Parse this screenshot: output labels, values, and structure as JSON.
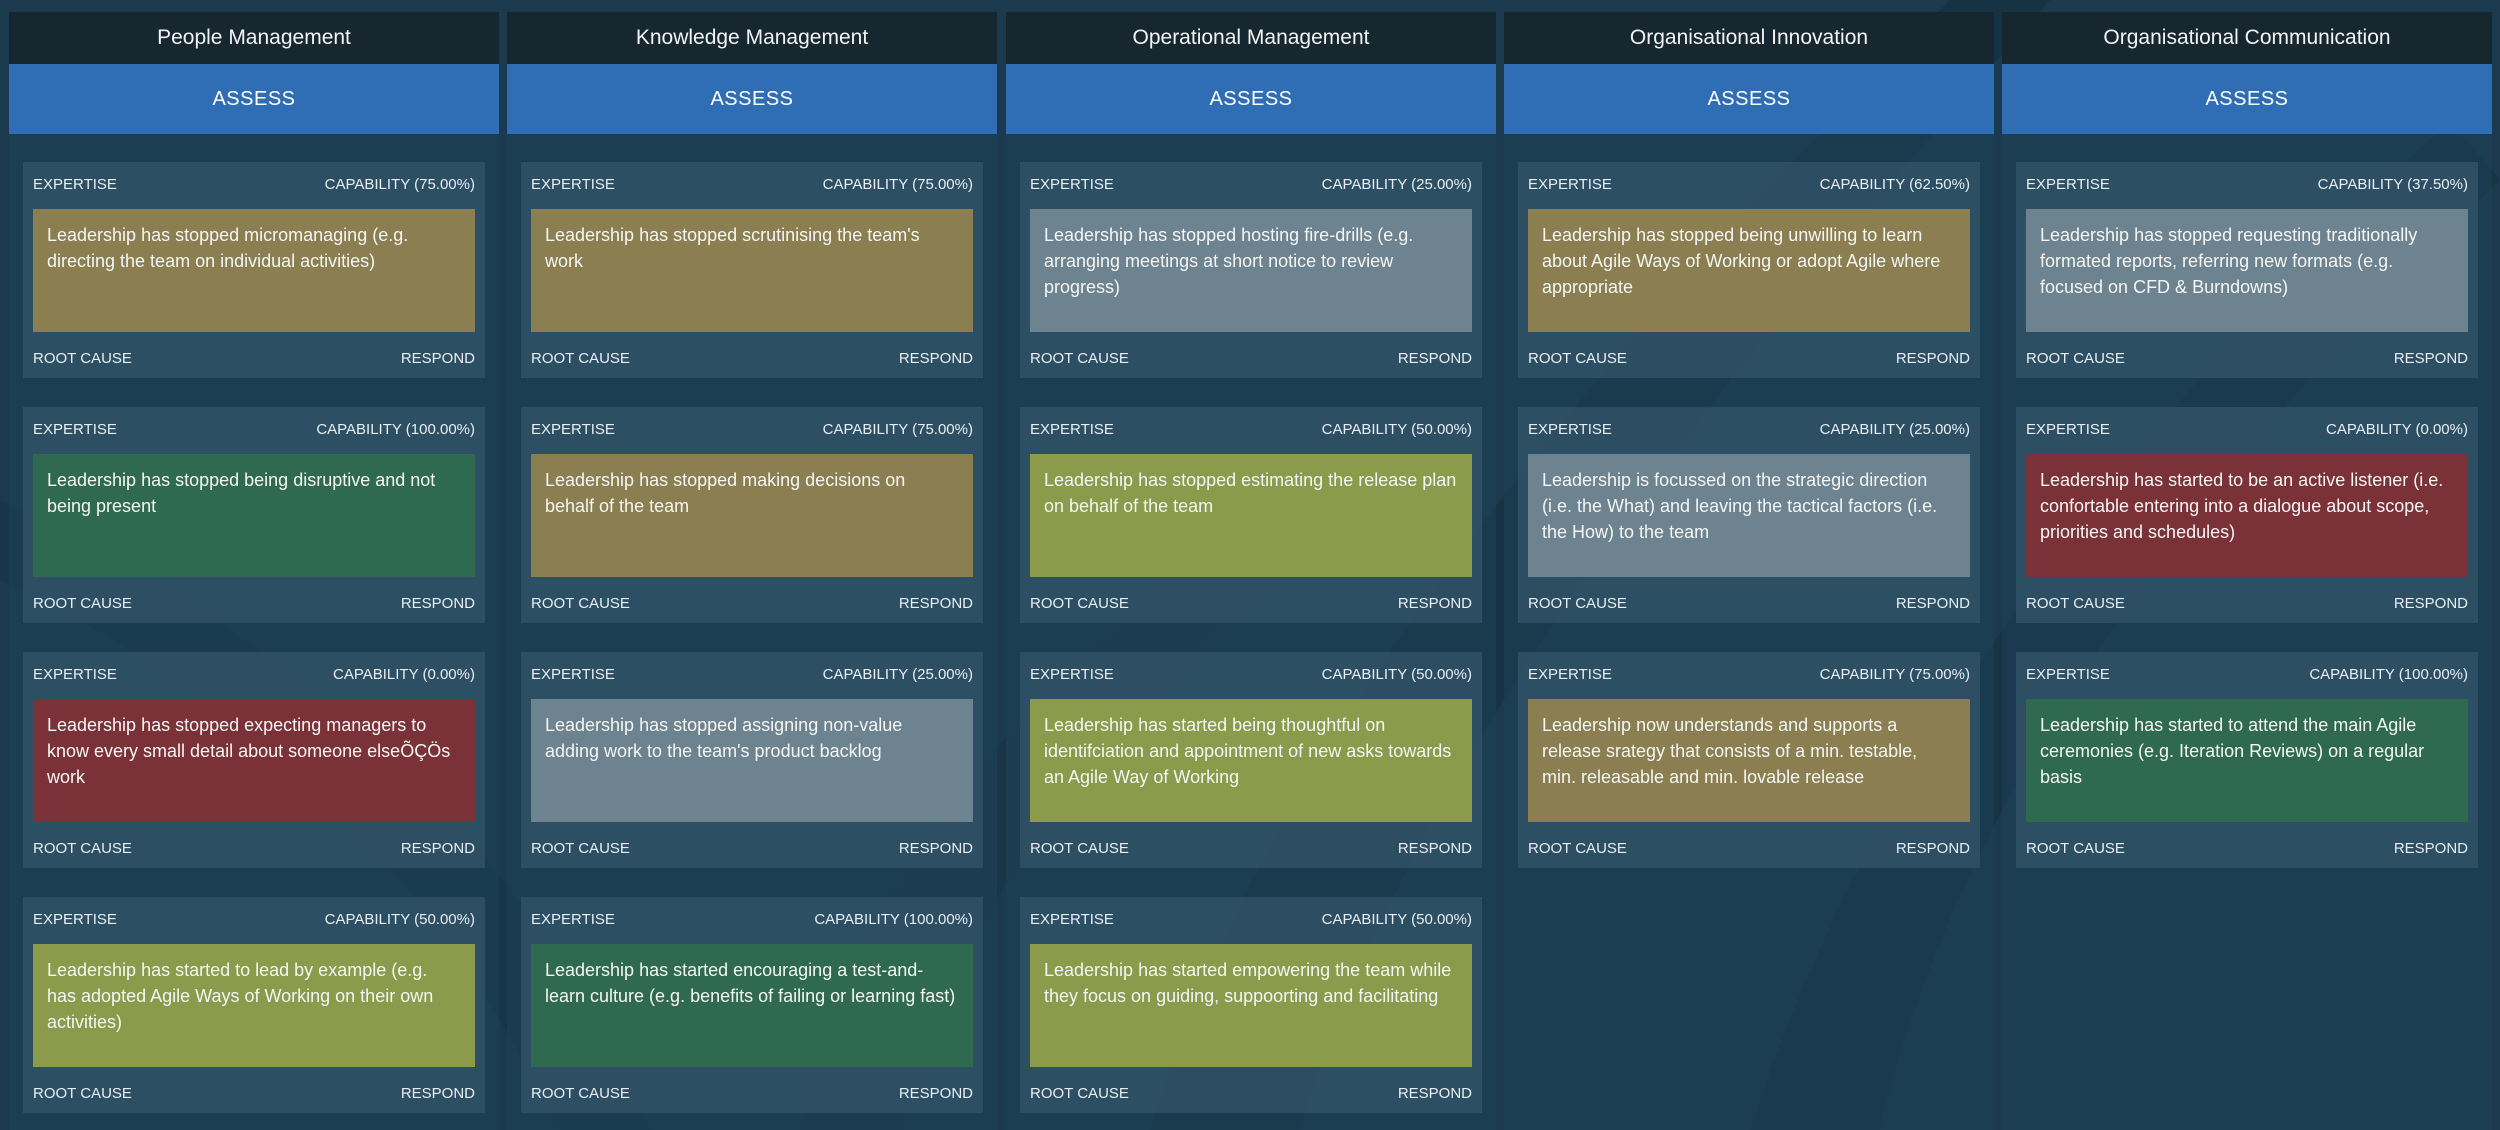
{
  "colors": {
    "background": "#1b3a4e",
    "header": "#16272f",
    "assess": "#2f6db5",
    "capability_0_25": "#6e8390",
    "capability_mid": "#8c9a4c",
    "capability_75": "#8b7f52",
    "capability_100": "#2f6a50",
    "capability_zero": "#7a3138"
  },
  "labels": {
    "expertise": "EXPERTISE",
    "root_cause": "ROOT CAUSE",
    "respond": "RESPOND"
  },
  "columns": [
    {
      "title": "People Management",
      "assess_label": "ASSESS",
      "cards": [
        {
          "capability": "CAPABILITY (75.00%)",
          "text": "Leadership has stopped micromanaging (e.g. directing the team on individual activities)",
          "tone": "orange"
        },
        {
          "capability": "CAPABILITY (100.00%)",
          "text": "Leadership has stopped being disruptive and not being present",
          "tone": "green"
        },
        {
          "capability": "CAPABILITY (0.00%)",
          "text": "Leadership has stopped expecting managers to know every small detail about someone elseÕÇÖs work",
          "tone": "red"
        },
        {
          "capability": "CAPABILITY (50.00%)",
          "text": "Leadership has started to lead by example (e.g. has adopted Agile Ways of Working on their own activities)",
          "tone": "olive"
        }
      ]
    },
    {
      "title": "Knowledge Management",
      "assess_label": "ASSESS",
      "cards": [
        {
          "capability": "CAPABILITY (75.00%)",
          "text": "Leadership has stopped scrutinising the team's work",
          "tone": "orange"
        },
        {
          "capability": "CAPABILITY (75.00%)",
          "text": "Leadership has stopped making decisions on behalf of the team",
          "tone": "orange"
        },
        {
          "capability": "CAPABILITY (25.00%)",
          "text": "Leadership has stopped assigning non-value adding work to the team's product backlog",
          "tone": "gray"
        },
        {
          "capability": "CAPABILITY (100.00%)",
          "text": "Leadership has started encouraging a test-and-learn culture (e.g. benefits of failing or learning fast)",
          "tone": "green"
        }
      ]
    },
    {
      "title": "Operational Management",
      "assess_label": "ASSESS",
      "cards": [
        {
          "capability": "CAPABILITY (25.00%)",
          "text": "Leadership has stopped hosting fire-drills (e.g. arranging meetings at short notice to review progress)",
          "tone": "gray"
        },
        {
          "capability": "CAPABILITY (50.00%)",
          "text": "Leadership has stopped estimating the release plan on behalf of the team",
          "tone": "olive"
        },
        {
          "capability": "CAPABILITY (50.00%)",
          "text": "Leadership has started being thoughtful on identifciation and appointment of new asks towards an Agile Way of Working",
          "tone": "olive"
        },
        {
          "capability": "CAPABILITY (50.00%)",
          "text": "Leadership has started empowering the team while they focus on guiding, suppoorting and facilitating",
          "tone": "olive"
        }
      ]
    },
    {
      "title": "Organisational Innovation",
      "assess_label": "ASSESS",
      "cards": [
        {
          "capability": "CAPABILITY (62.50%)",
          "text": "Leadership has stopped being unwilling to learn about Agile Ways of Working or adopt Agile where appropriate",
          "tone": "orange"
        },
        {
          "capability": "CAPABILITY (25.00%)",
          "text": "Leadership is focussed on the strategic direction (i.e. the What) and leaving the tactical factors (i.e. the How) to the team",
          "tone": "gray"
        },
        {
          "capability": "CAPABILITY (75.00%)",
          "text": "Leadership now understands and supports a release srategy that consists of a min. testable, min. releasable and min. lovable release",
          "tone": "orange"
        }
      ]
    },
    {
      "title": "Organisational Communication",
      "assess_label": "ASSESS",
      "cards": [
        {
          "capability": "CAPABILITY (37.50%)",
          "text": "Leadership has stopped requesting traditionally formated reports, referring new formats (e.g. focused on CFD & Burndowns)",
          "tone": "gray"
        },
        {
          "capability": "CAPABILITY (0.00%)",
          "text": "Leadership has started to be an active listener (i.e. confortable entering into a dialogue about scope, priorities and schedules)",
          "tone": "red"
        },
        {
          "capability": "CAPABILITY (100.00%)",
          "text": "Leadership has started to attend the main Agile ceremonies (e.g. Iteration Reviews) on a regular basis",
          "tone": "green"
        }
      ]
    }
  ]
}
